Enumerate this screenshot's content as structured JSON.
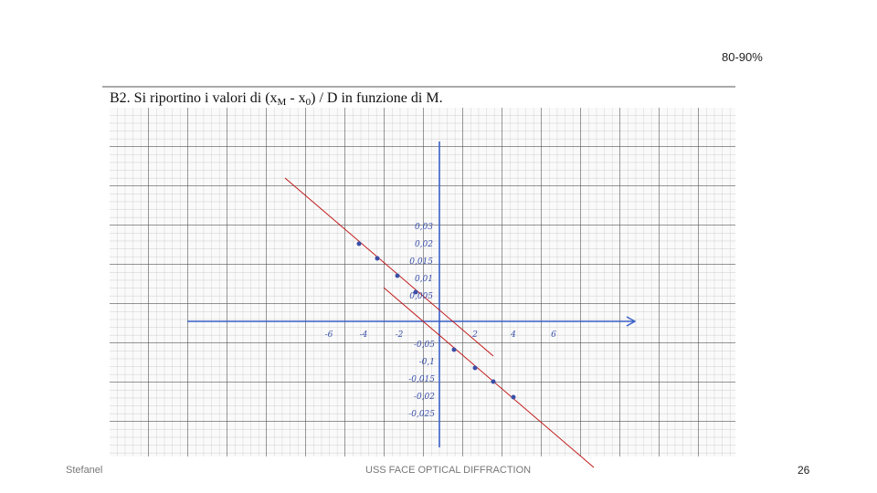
{
  "header": {
    "badge": "80-90%"
  },
  "figure": {
    "title_parts": [
      "B2. Si riportino i valori di (x",
      "M",
      " - x",
      "0",
      ") / D  in funzione di M."
    ],
    "x_labels": [
      "-6",
      "-4",
      "-2",
      "2",
      "4",
      "6"
    ],
    "y_labels_upper": [
      "0,03",
      "0,02",
      "0,015",
      "0,01",
      "0,005"
    ],
    "y_labels_lower": [
      "-0,05",
      "-0,1",
      "-0,015",
      "-0,02",
      "-0,025"
    ]
  },
  "footer": {
    "author": "Stefanel",
    "center": "USS FACE OPTICAL DIFFRACTION",
    "page": "26"
  }
}
